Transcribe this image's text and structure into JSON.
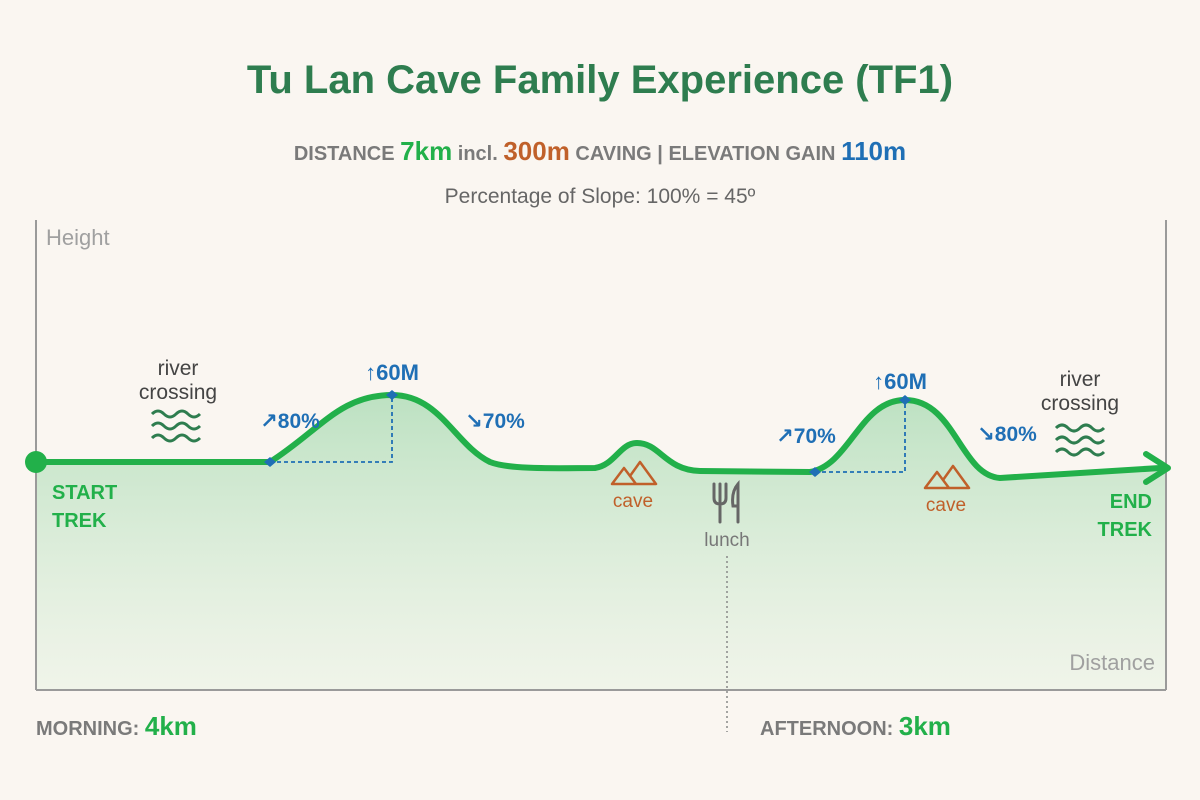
{
  "header": {
    "title": "Tu Lan Cave Family Experience (TF1)",
    "stats": [
      "DISTANCE",
      "7km",
      "incl.",
      "300m",
      "CAVING",
      "|",
      "ELEVATION GAIN",
      "110m"
    ],
    "note": "Percentage of Slope: 100% = 45º"
  },
  "axes": {
    "y_label": "Height",
    "x_label": "Distance"
  },
  "profile": {
    "start": [
      "START",
      "TREK"
    ],
    "end": [
      "END",
      "TREK"
    ],
    "annotations": {
      "river_1": [
        "river",
        "crossing"
      ],
      "climb_1": "↗80%",
      "peak_1": "↑60M",
      "descent_1": "↘70%",
      "cave_1": "cave",
      "lunch": "lunch",
      "climb_2": "↗70%",
      "peak_2": "↑60M",
      "descent_2": "↘80%",
      "cave_2": "cave",
      "river_2": [
        "river",
        "crossing"
      ]
    }
  },
  "footer": {
    "morning": {
      "label": "MORNING:",
      "value": "4km"
    },
    "afternoon": {
      "label": "AFTERNOON:",
      "value": "3km"
    }
  }
}
